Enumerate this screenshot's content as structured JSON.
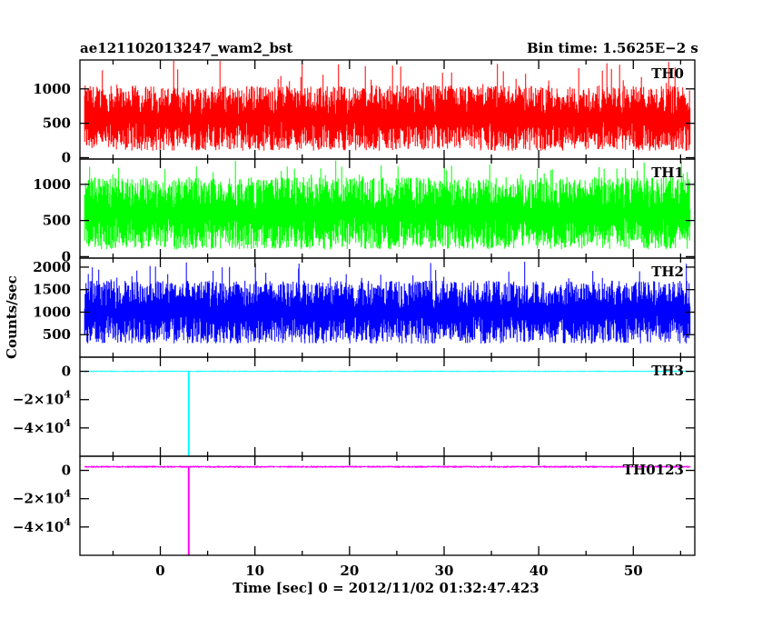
{
  "chart_data": {
    "type": "line",
    "title_left": "ae121102013247_wam2_bst",
    "title_right": "Bin time: 1.5625E−2 s",
    "xlabel": "Time [sec] 0 = 2012/11/02 01:32:47.423",
    "ylabel": "Counts/sec",
    "xlim": [
      -8.5,
      56.5
    ],
    "x_ticks": [
      0,
      10,
      20,
      30,
      40,
      50
    ],
    "x_range_data": [
      -8,
      56
    ],
    "grid": false,
    "panels": [
      {
        "name": "TH0",
        "color": "#ff0000",
        "ylim": [
          -20,
          1420
        ],
        "y_ticks": [
          0,
          500,
          1000
        ],
        "y_tick_labels": [
          "0",
          "500",
          "1000"
        ],
        "baseline": 560,
        "noise_low": 100,
        "noise_high": 1050,
        "spike_max": 1420,
        "spikes": []
      },
      {
        "name": "TH1",
        "color": "#00ff00",
        "ylim": [
          -20,
          1350
        ],
        "y_ticks": [
          0,
          500,
          1000
        ],
        "y_tick_labels": [
          "0",
          "500",
          "1000"
        ],
        "baseline": 590,
        "noise_low": 100,
        "noise_high": 1100,
        "spike_max": 1350,
        "spikes": []
      },
      {
        "name": "TH2",
        "color": "#0000ff",
        "ylim": [
          0,
          2200
        ],
        "y_ticks": [
          500,
          1000,
          1500,
          2000
        ],
        "y_tick_labels": [
          "500",
          "1000",
          "1500",
          "2000"
        ],
        "baseline": 830,
        "noise_low": 300,
        "noise_high": 1700,
        "spike_max": 2150,
        "spikes": []
      },
      {
        "name": "TH3",
        "color": "#00ffff",
        "ylim": [
          -60000,
          10000
        ],
        "y_ticks": [
          0,
          -20000,
          -40000
        ],
        "y_tick_labels": [
          "0",
          "−2×10^4",
          "−4×10^4"
        ],
        "baseline": 0,
        "noise_low": -500,
        "noise_high": 500,
        "spike_max": 0,
        "spikes": [
          {
            "x": 3.0,
            "y_min": -60000
          }
        ]
      },
      {
        "name": "TH0123",
        "color": "#ff00ff",
        "ylim": [
          -60000,
          10000
        ],
        "y_ticks": [
          0,
          -20000,
          -40000
        ],
        "y_tick_labels": [
          "0",
          "−2×10^4",
          "−4×10^4"
        ],
        "baseline": 2500,
        "noise_low": 1800,
        "noise_high": 3300,
        "spike_max": 3300,
        "spikes": [
          {
            "x": 3.0,
            "y_min": -60000
          }
        ]
      }
    ]
  }
}
